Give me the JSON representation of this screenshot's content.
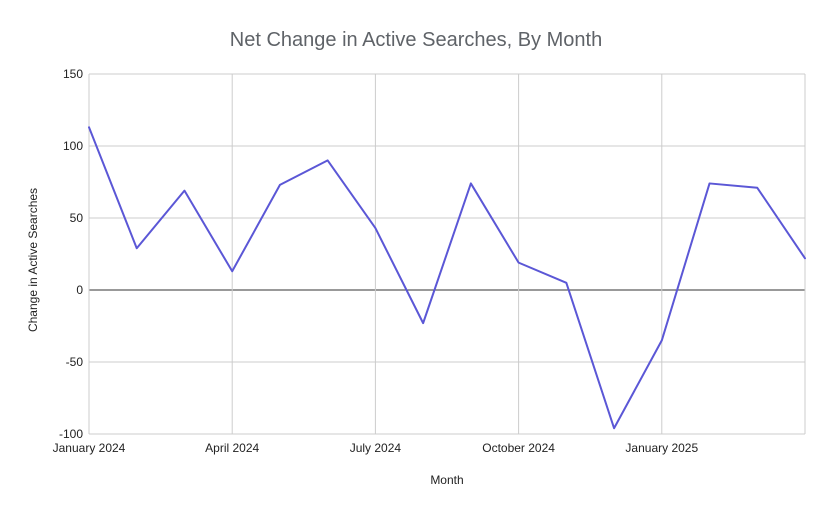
{
  "chart_data": {
    "type": "line",
    "title": "Net Change in Active Searches, By Month",
    "xlabel": "Month",
    "ylabel": "Change in Active Searches",
    "ylim": [
      -100,
      150
    ],
    "yticks": [
      150,
      100,
      50,
      0,
      -50,
      -100
    ],
    "x": [
      "2024-01",
      "2024-02",
      "2024-03",
      "2024-04",
      "2024-05",
      "2024-06",
      "2024-07",
      "2024-08",
      "2024-09",
      "2024-10",
      "2024-11",
      "2024-12",
      "2025-01",
      "2025-02",
      "2025-03",
      "2025-04"
    ],
    "x_ticks": [
      {
        "label": "January 2024",
        "index": 0
      },
      {
        "label": "April 2024",
        "index": 3
      },
      {
        "label": "July 2024",
        "index": 6
      },
      {
        "label": "October 2024",
        "index": 9
      },
      {
        "label": "January 2025",
        "index": 12
      }
    ],
    "series": [
      {
        "values": [
          113,
          29,
          69,
          13,
          73,
          90,
          43,
          -23,
          74,
          19,
          5,
          -96,
          -35,
          74,
          71,
          22
        ],
        "color": "#5b57d6"
      }
    ],
    "grid": true,
    "legend": "none"
  }
}
